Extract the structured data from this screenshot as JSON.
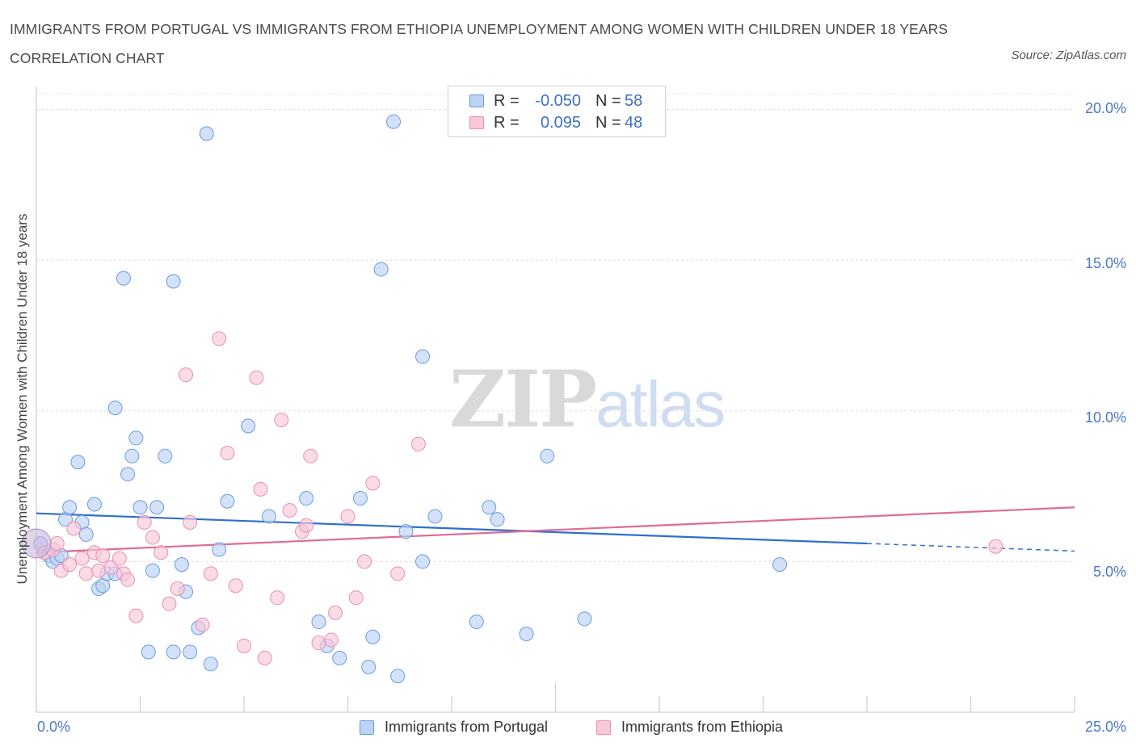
{
  "title": "IMMIGRANTS FROM PORTUGAL VS IMMIGRANTS FROM ETHIOPIA UNEMPLOYMENT AMONG WOMEN WITH CHILDREN UNDER 18 YEARS CORRELATION CHART",
  "source": "Source: ZipAtlas.com",
  "watermark": {
    "zip": "ZIP",
    "atlas": "atlas"
  },
  "stats": [
    {
      "r_label": "R =",
      "r_value": "-0.050",
      "n_label": "N =",
      "n_value": "58",
      "color": "#6b9be0",
      "fill": "#bcd3f5"
    },
    {
      "r_label": "R =",
      "r_value": "0.095",
      "n_label": "N =",
      "n_value": "48",
      "color": "#e88fb0",
      "fill": "#f8c8d8"
    }
  ],
  "legend": [
    {
      "label": "Immigrants from Portugal",
      "color": "#6b9be0",
      "fill": "#bcd3f5"
    },
    {
      "label": "Immigrants from Ethiopia",
      "color": "#e88fb0",
      "fill": "#f8c8d8"
    }
  ],
  "chart_data": {
    "type": "scatter",
    "title": "IMMIGRANTS FROM PORTUGAL VS IMMIGRANTS FROM ETHIOPIA UNEMPLOYMENT AMONG WOMEN WITH CHILDREN UNDER 18 YEARS CORRELATION CHART",
    "xlabel": "",
    "ylabel": "Unemployment Among Women with Children Under 18 years",
    "xlim": [
      0,
      25
    ],
    "ylim": [
      0,
      20.5
    ],
    "x_tick_labels": [
      "0.0%",
      "25.0%"
    ],
    "y_ticks": [
      5,
      10,
      15,
      20
    ],
    "y_tick_labels": [
      "5.0%",
      "10.0%",
      "15.0%",
      "20.0%"
    ],
    "grid": true,
    "legend_position": "bottom",
    "series": [
      {
        "name": "Immigrants from Portugal",
        "color": "#6b9be0",
        "trend": {
          "x": [
            0,
            20
          ],
          "y": [
            6.6,
            5.6
          ],
          "dashed_extension_to": [
            25,
            5.35
          ]
        },
        "points": [
          [
            0.1,
            5.6
          ],
          [
            0.3,
            5.2
          ],
          [
            0.4,
            5.0
          ],
          [
            0.5,
            5.1
          ],
          [
            0.6,
            5.2
          ],
          [
            0.7,
            6.4
          ],
          [
            0.8,
            6.8
          ],
          [
            1.0,
            8.3
          ],
          [
            1.1,
            6.3
          ],
          [
            1.2,
            5.9
          ],
          [
            1.4,
            6.9
          ],
          [
            1.5,
            4.1
          ],
          [
            1.6,
            4.2
          ],
          [
            1.7,
            4.6
          ],
          [
            1.9,
            4.6
          ],
          [
            1.9,
            10.1
          ],
          [
            2.1,
            14.4
          ],
          [
            2.2,
            7.9
          ],
          [
            2.3,
            8.5
          ],
          [
            2.4,
            9.1
          ],
          [
            2.5,
            6.8
          ],
          [
            2.7,
            2.0
          ],
          [
            2.8,
            4.7
          ],
          [
            2.9,
            6.8
          ],
          [
            3.1,
            8.5
          ],
          [
            3.3,
            14.3
          ],
          [
            3.3,
            2.0
          ],
          [
            3.5,
            4.9
          ],
          [
            3.6,
            4.0
          ],
          [
            3.7,
            2.0
          ],
          [
            3.9,
            2.8
          ],
          [
            4.1,
            19.2
          ],
          [
            4.2,
            1.6
          ],
          [
            4.4,
            5.4
          ],
          [
            4.6,
            7.0
          ],
          [
            5.1,
            9.5
          ],
          [
            5.6,
            6.5
          ],
          [
            6.5,
            7.1
          ],
          [
            6.8,
            3.0
          ],
          [
            7.0,
            2.2
          ],
          [
            7.3,
            1.8
          ],
          [
            7.8,
            7.1
          ],
          [
            8.0,
            1.5
          ],
          [
            8.1,
            2.5
          ],
          [
            8.3,
            14.7
          ],
          [
            8.6,
            19.6
          ],
          [
            8.7,
            1.2
          ],
          [
            8.9,
            6.0
          ],
          [
            9.3,
            11.8
          ],
          [
            9.3,
            5.0
          ],
          [
            9.6,
            6.5
          ],
          [
            10.6,
            3.0
          ],
          [
            10.9,
            6.8
          ],
          [
            11.1,
            6.4
          ],
          [
            11.8,
            2.6
          ],
          [
            12.3,
            8.5
          ],
          [
            13.2,
            3.1
          ],
          [
            17.9,
            4.9
          ]
        ]
      },
      {
        "name": "Immigrants from Ethiopia",
        "color": "#e88fb0",
        "trend": {
          "x": [
            0,
            25
          ],
          "y": [
            5.3,
            6.8
          ]
        },
        "points": [
          [
            0.2,
            5.3
          ],
          [
            0.4,
            5.4
          ],
          [
            0.5,
            5.6
          ],
          [
            0.6,
            4.7
          ],
          [
            0.8,
            4.9
          ],
          [
            0.9,
            6.1
          ],
          [
            1.1,
            5.1
          ],
          [
            1.2,
            4.6
          ],
          [
            1.4,
            5.3
          ],
          [
            1.5,
            4.7
          ],
          [
            1.6,
            5.2
          ],
          [
            1.8,
            4.8
          ],
          [
            2.0,
            5.1
          ],
          [
            2.1,
            4.6
          ],
          [
            2.2,
            4.4
          ],
          [
            2.4,
            3.2
          ],
          [
            2.6,
            6.3
          ],
          [
            2.8,
            5.8
          ],
          [
            3.0,
            5.3
          ],
          [
            3.2,
            3.6
          ],
          [
            3.4,
            4.1
          ],
          [
            3.6,
            11.2
          ],
          [
            3.7,
            6.3
          ],
          [
            4.0,
            2.9
          ],
          [
            4.2,
            4.6
          ],
          [
            4.4,
            12.4
          ],
          [
            4.6,
            8.6
          ],
          [
            4.8,
            4.2
          ],
          [
            5.0,
            2.2
          ],
          [
            5.3,
            11.1
          ],
          [
            5.4,
            7.4
          ],
          [
            5.5,
            1.8
          ],
          [
            5.8,
            3.8
          ],
          [
            5.9,
            9.7
          ],
          [
            6.1,
            6.7
          ],
          [
            6.4,
            6.0
          ],
          [
            6.5,
            6.2
          ],
          [
            6.6,
            8.5
          ],
          [
            6.8,
            2.3
          ],
          [
            7.1,
            2.4
          ],
          [
            7.2,
            3.3
          ],
          [
            7.5,
            6.5
          ],
          [
            7.7,
            3.8
          ],
          [
            7.9,
            5.0
          ],
          [
            8.1,
            7.6
          ],
          [
            8.7,
            4.6
          ],
          [
            9.2,
            8.9
          ],
          [
            23.1,
            5.5
          ]
        ]
      }
    ]
  }
}
